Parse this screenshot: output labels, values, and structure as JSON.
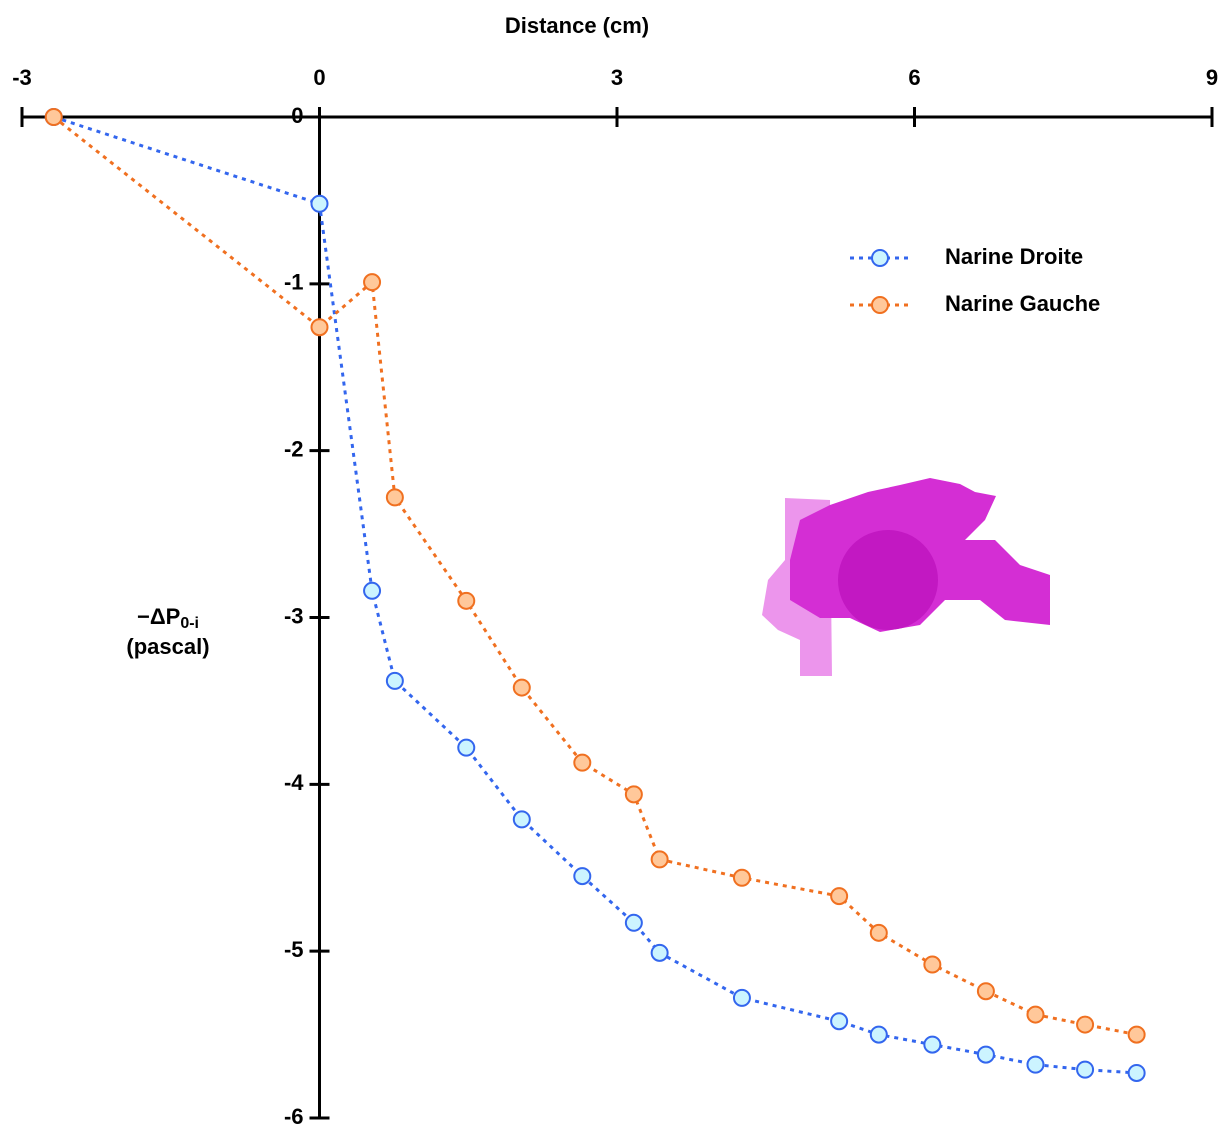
{
  "chart_data": {
    "type": "line",
    "title": "Distance (cm)",
    "ylabel": "−ΔP",
    "ylabel_sub": "0-i",
    "ylabel_unit": "(pascal)",
    "x": [
      -2.68,
      0,
      0.53,
      0.76,
      1.48,
      2.04,
      2.65,
      3.17,
      3.43,
      4.26,
      5.24,
      5.64,
      6.18,
      6.72,
      7.22,
      7.72,
      8.24
    ],
    "series": [
      {
        "name": "Narine Droite",
        "color": "#3366ee",
        "marker_fill": "#ccf4ff",
        "values": [
          0,
          -0.52,
          -2.84,
          -3.38,
          -3.78,
          -4.21,
          -4.55,
          -4.83,
          -5.01,
          -5.28,
          -5.42,
          -5.5,
          -5.56,
          -5.62,
          -5.68,
          -5.71,
          -5.73
        ]
      },
      {
        "name": "Narine Gauche",
        "color": "#f07020",
        "marker_fill": "#ffc89a",
        "values": [
          0,
          -1.26,
          -0.99,
          -2.28,
          -2.9,
          -3.42,
          -3.87,
          -4.06,
          -4.45,
          -4.56,
          -4.67,
          -4.89,
          -5.08,
          -5.24,
          -5.38,
          -5.44,
          -5.5
        ]
      }
    ],
    "xlim": [
      -3,
      9
    ],
    "xticks": [
      -3,
      0,
      3,
      6,
      9
    ],
    "ylim": [
      -6,
      0
    ],
    "yticks": [
      0,
      -1,
      -2,
      -3,
      -4,
      -5,
      -6
    ],
    "legend": "upper-right"
  }
}
